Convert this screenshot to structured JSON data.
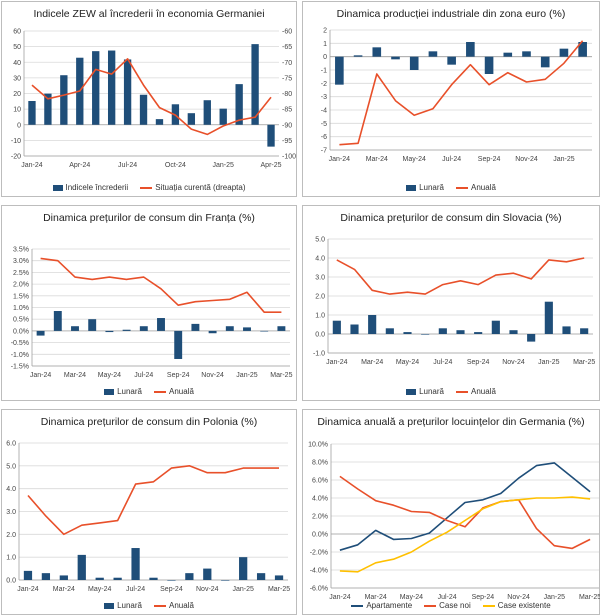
{
  "chart_data": [
    {
      "id": "zew",
      "type": "bar+line",
      "title": "Indicele ZEW al încrederii în economia Germaniei",
      "x_ticks": [
        "Jan-24",
        "Apr-24",
        "Jul-24",
        "Oct-24",
        "Jan-25",
        "Apr-25"
      ],
      "ylim": [
        -20,
        60
      ],
      "y_ticks": [
        "60",
        "50",
        "40",
        "30",
        "20",
        "10",
        "0",
        "-10",
        "-20"
      ],
      "y2lim": [
        -100,
        -60
      ],
      "y2_ticks": [
        "-60",
        "-65",
        "-70",
        "-75",
        "-80",
        "-85",
        "-90",
        "-95",
        "-100"
      ],
      "series": [
        {
          "name": "Indicele încrederii",
          "kind": "bar",
          "color": "#1f4e79",
          "values": [
            15.2,
            19.9,
            31.7,
            42.9,
            47.1,
            47.5,
            41.8,
            19.2,
            3.6,
            13.1,
            7.4,
            15.7,
            10.3,
            26.0,
            51.6,
            -14.0
          ]
        },
        {
          "name": "Situația curentă (dreapta)",
          "kind": "line",
          "axis": "right",
          "color": "#e8502a",
          "values": [
            -77.3,
            -81.7,
            -80.5,
            -79.2,
            -72.3,
            -73.8,
            -68.9,
            -77.3,
            -84.5,
            -86.9,
            -91.4,
            -93.1,
            -90.4,
            -88.5,
            -87.6,
            -81.2
          ]
        }
      ]
    },
    {
      "id": "euro",
      "type": "bar+line",
      "title": "Dinamica producției industriale din zona euro (%)",
      "x_ticks": [
        "Jan-24",
        "Mar-24",
        "May-24",
        "Jul-24",
        "Sep-24",
        "Nov-24",
        "Jan-25"
      ],
      "ylim": [
        -7,
        2
      ],
      "y_ticks": [
        "2",
        "1",
        "0",
        "-1",
        "-2",
        "-3",
        "-4",
        "-5",
        "-6",
        "-7"
      ],
      "series": [
        {
          "name": "Lunară",
          "kind": "bar",
          "color": "#1f4e79",
          "values": [
            -2.1,
            0.1,
            0.7,
            -0.2,
            -1.0,
            0.4,
            -0.6,
            1.1,
            -1.3,
            0.3,
            0.4,
            -0.8,
            0.6,
            1.1
          ]
        },
        {
          "name": "Anuală",
          "kind": "line",
          "color": "#e8502a",
          "values": [
            -6.6,
            -6.5,
            -1.3,
            -3.3,
            -4.4,
            -3.9,
            -2.1,
            -0.6,
            -2.1,
            -1.2,
            -1.9,
            -1.7,
            -0.5,
            1.2
          ]
        }
      ]
    },
    {
      "id": "fr",
      "type": "bar+line",
      "title": "Dinamica prețurilor de consum din Franța (%)",
      "x_ticks": [
        "Jan-24",
        "Mar-24",
        "May-24",
        "Jul-24",
        "Sep-24",
        "Nov-24",
        "Jan-25",
        "Mar-25"
      ],
      "ylim": [
        -1.5,
        3.5
      ],
      "y_ticks": [
        "3.5%",
        "3.0%",
        "2.5%",
        "2.0%",
        "1.5%",
        "1.0%",
        "0.5%",
        "0.0%",
        "-0.5%",
        "-1.0%",
        "-1.5%"
      ],
      "series": [
        {
          "name": "Lunară",
          "kind": "bar",
          "color": "#1f4e79",
          "values": [
            -0.2,
            0.85,
            0.2,
            0.5,
            -0.05,
            0.05,
            0.2,
            0.55,
            -1.2,
            0.3,
            -0.1,
            0.2,
            0.15,
            0.0,
            0.2
          ]
        },
        {
          "name": "Anuală",
          "kind": "line",
          "color": "#e8502a",
          "values": [
            3.1,
            3.0,
            2.3,
            2.2,
            2.3,
            2.2,
            2.3,
            1.8,
            1.1,
            1.25,
            1.3,
            1.35,
            1.65,
            0.8,
            0.8
          ]
        }
      ]
    },
    {
      "id": "sk",
      "type": "bar+line",
      "title": "Dinamica prețurilor de consum din Slovacia (%)",
      "x_ticks": [
        "Jan-24",
        "Mar-24",
        "May-24",
        "Jul-24",
        "Sep-24",
        "Nov-24",
        "Jan-25",
        "Mar-25"
      ],
      "ylim": [
        -1,
        5
      ],
      "y_ticks": [
        "5.0",
        "4.0",
        "3.0",
        "2.0",
        "1.0",
        "0.0",
        "-1.0"
      ],
      "series": [
        {
          "name": "Lunară",
          "kind": "bar",
          "color": "#1f4e79",
          "values": [
            0.7,
            0.5,
            1.0,
            0.3,
            0.1,
            0.0,
            0.3,
            0.2,
            0.1,
            0.7,
            0.2,
            -0.4,
            1.7,
            0.4,
            0.3
          ]
        },
        {
          "name": "Anuală",
          "kind": "line",
          "color": "#e8502a",
          "values": [
            3.9,
            3.4,
            2.3,
            2.1,
            2.2,
            2.1,
            2.6,
            2.8,
            2.6,
            3.1,
            3.2,
            2.9,
            3.9,
            3.8,
            4.0
          ]
        }
      ]
    },
    {
      "id": "pl",
      "type": "bar+line",
      "title": "Dinamica prețurilor de consum din Polonia (%)",
      "x_ticks": [
        "Jan-24",
        "Mar-24",
        "May-24",
        "Jul-24",
        "Sep-24",
        "Nov-24",
        "Jan-25",
        "Mar-25"
      ],
      "ylim": [
        0,
        6
      ],
      "y_ticks": [
        "6.0",
        "5.0",
        "4.0",
        "3.0",
        "2.0",
        "1.0",
        "0.0"
      ],
      "series": [
        {
          "name": "Lunară",
          "kind": "bar",
          "color": "#1f4e79",
          "values": [
            0.4,
            0.3,
            0.2,
            1.1,
            0.1,
            0.1,
            1.4,
            0.1,
            0.0,
            0.3,
            0.5,
            0.0,
            1.0,
            0.3,
            0.2
          ]
        },
        {
          "name": "Anuală",
          "kind": "line",
          "color": "#e8502a",
          "values": [
            3.7,
            2.8,
            2.0,
            2.4,
            2.5,
            2.6,
            4.2,
            4.3,
            4.9,
            5.0,
            4.7,
            4.7,
            4.9,
            4.9,
            4.9
          ]
        }
      ]
    },
    {
      "id": "house",
      "type": "line",
      "title": "Dinamica anuală a prețurilor locuințelor din Germania (%)",
      "x_ticks": [
        "Jan-24",
        "Mar-24",
        "May-24",
        "Jul-24",
        "Sep-24",
        "Nov-24",
        "Jan-25",
        "Mar-25"
      ],
      "ylim": [
        -6,
        10
      ],
      "y_ticks": [
        "10.0%",
        "8.0%",
        "6.0%",
        "4.0%",
        "2.0%",
        "0.0%",
        "-2.0%",
        "-4.0%",
        "-6.0%"
      ],
      "series": [
        {
          "name": "Apartamente",
          "kind": "line",
          "color": "#1f4e79",
          "values": [
            -1.8,
            -1.2,
            0.4,
            -0.6,
            -0.5,
            0.1,
            1.8,
            3.5,
            3.8,
            4.5,
            6.2,
            7.6,
            7.9,
            6.3,
            4.7
          ]
        },
        {
          "name": "Case noi",
          "kind": "line",
          "color": "#e8502a",
          "values": [
            6.4,
            5.0,
            3.7,
            3.2,
            2.5,
            2.4,
            1.5,
            0.8,
            2.9,
            3.6,
            3.8,
            0.6,
            -1.3,
            -1.6,
            -0.6
          ]
        },
        {
          "name": "Case existente",
          "kind": "line",
          "color": "#ffc000",
          "values": [
            -4.1,
            -4.2,
            -3.2,
            -2.8,
            -2.0,
            -0.8,
            0.2,
            1.5,
            2.8,
            3.6,
            3.8,
            4.0,
            4.0,
            4.1,
            3.9
          ]
        }
      ]
    }
  ]
}
